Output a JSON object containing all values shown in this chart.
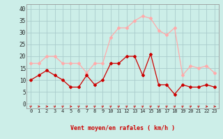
{
  "hours": [
    0,
    1,
    2,
    3,
    4,
    5,
    6,
    7,
    8,
    9,
    10,
    11,
    12,
    13,
    14,
    15,
    16,
    17,
    18,
    19,
    20,
    21,
    22,
    23
  ],
  "wind_mean": [
    10,
    12,
    14,
    12,
    10,
    7,
    7,
    12,
    8,
    10,
    17,
    17,
    20,
    20,
    12,
    21,
    8,
    8,
    4,
    8,
    7,
    7,
    8,
    7
  ],
  "wind_gust": [
    17,
    17,
    20,
    20,
    17,
    17,
    17,
    13,
    17,
    17,
    28,
    32,
    32,
    35,
    37,
    36,
    31,
    29,
    32,
    12,
    16,
    15,
    16,
    13
  ],
  "mean_color": "#cc0000",
  "gust_color": "#ffaaaa",
  "bg_color": "#cceee8",
  "grid_color": "#aacccc",
  "xlabel": "Vent moyen/en rafales ( km/h )",
  "xlabel_color": "#cc0000",
  "ylabel_ticks": [
    0,
    5,
    10,
    15,
    20,
    25,
    30,
    35,
    40
  ],
  "ylim": [
    -2,
    42
  ],
  "xlim": [
    -0.5,
    23.5
  ],
  "arrow_directions": [
    2,
    0,
    0,
    2,
    2,
    0,
    2,
    2,
    2,
    2,
    2,
    2,
    2,
    2,
    2,
    2,
    2,
    2,
    2,
    2,
    2,
    2,
    0,
    0
  ]
}
